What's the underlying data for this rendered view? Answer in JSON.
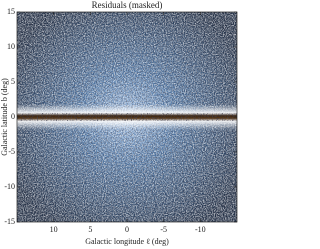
{
  "chart_data": {
    "type": "image",
    "title": "Residuals (masked)",
    "xlabel": "Galactic longitude ℓ (deg)",
    "ylabel": "Galactic latitude b (deg)",
    "xlim": [
      15,
      -15
    ],
    "ylim": [
      -15,
      15
    ],
    "xticks": [
      10,
      5,
      0,
      -5,
      -10
    ],
    "yticks": [
      -15,
      -10,
      -5,
      0,
      5,
      10,
      15
    ]
  }
}
